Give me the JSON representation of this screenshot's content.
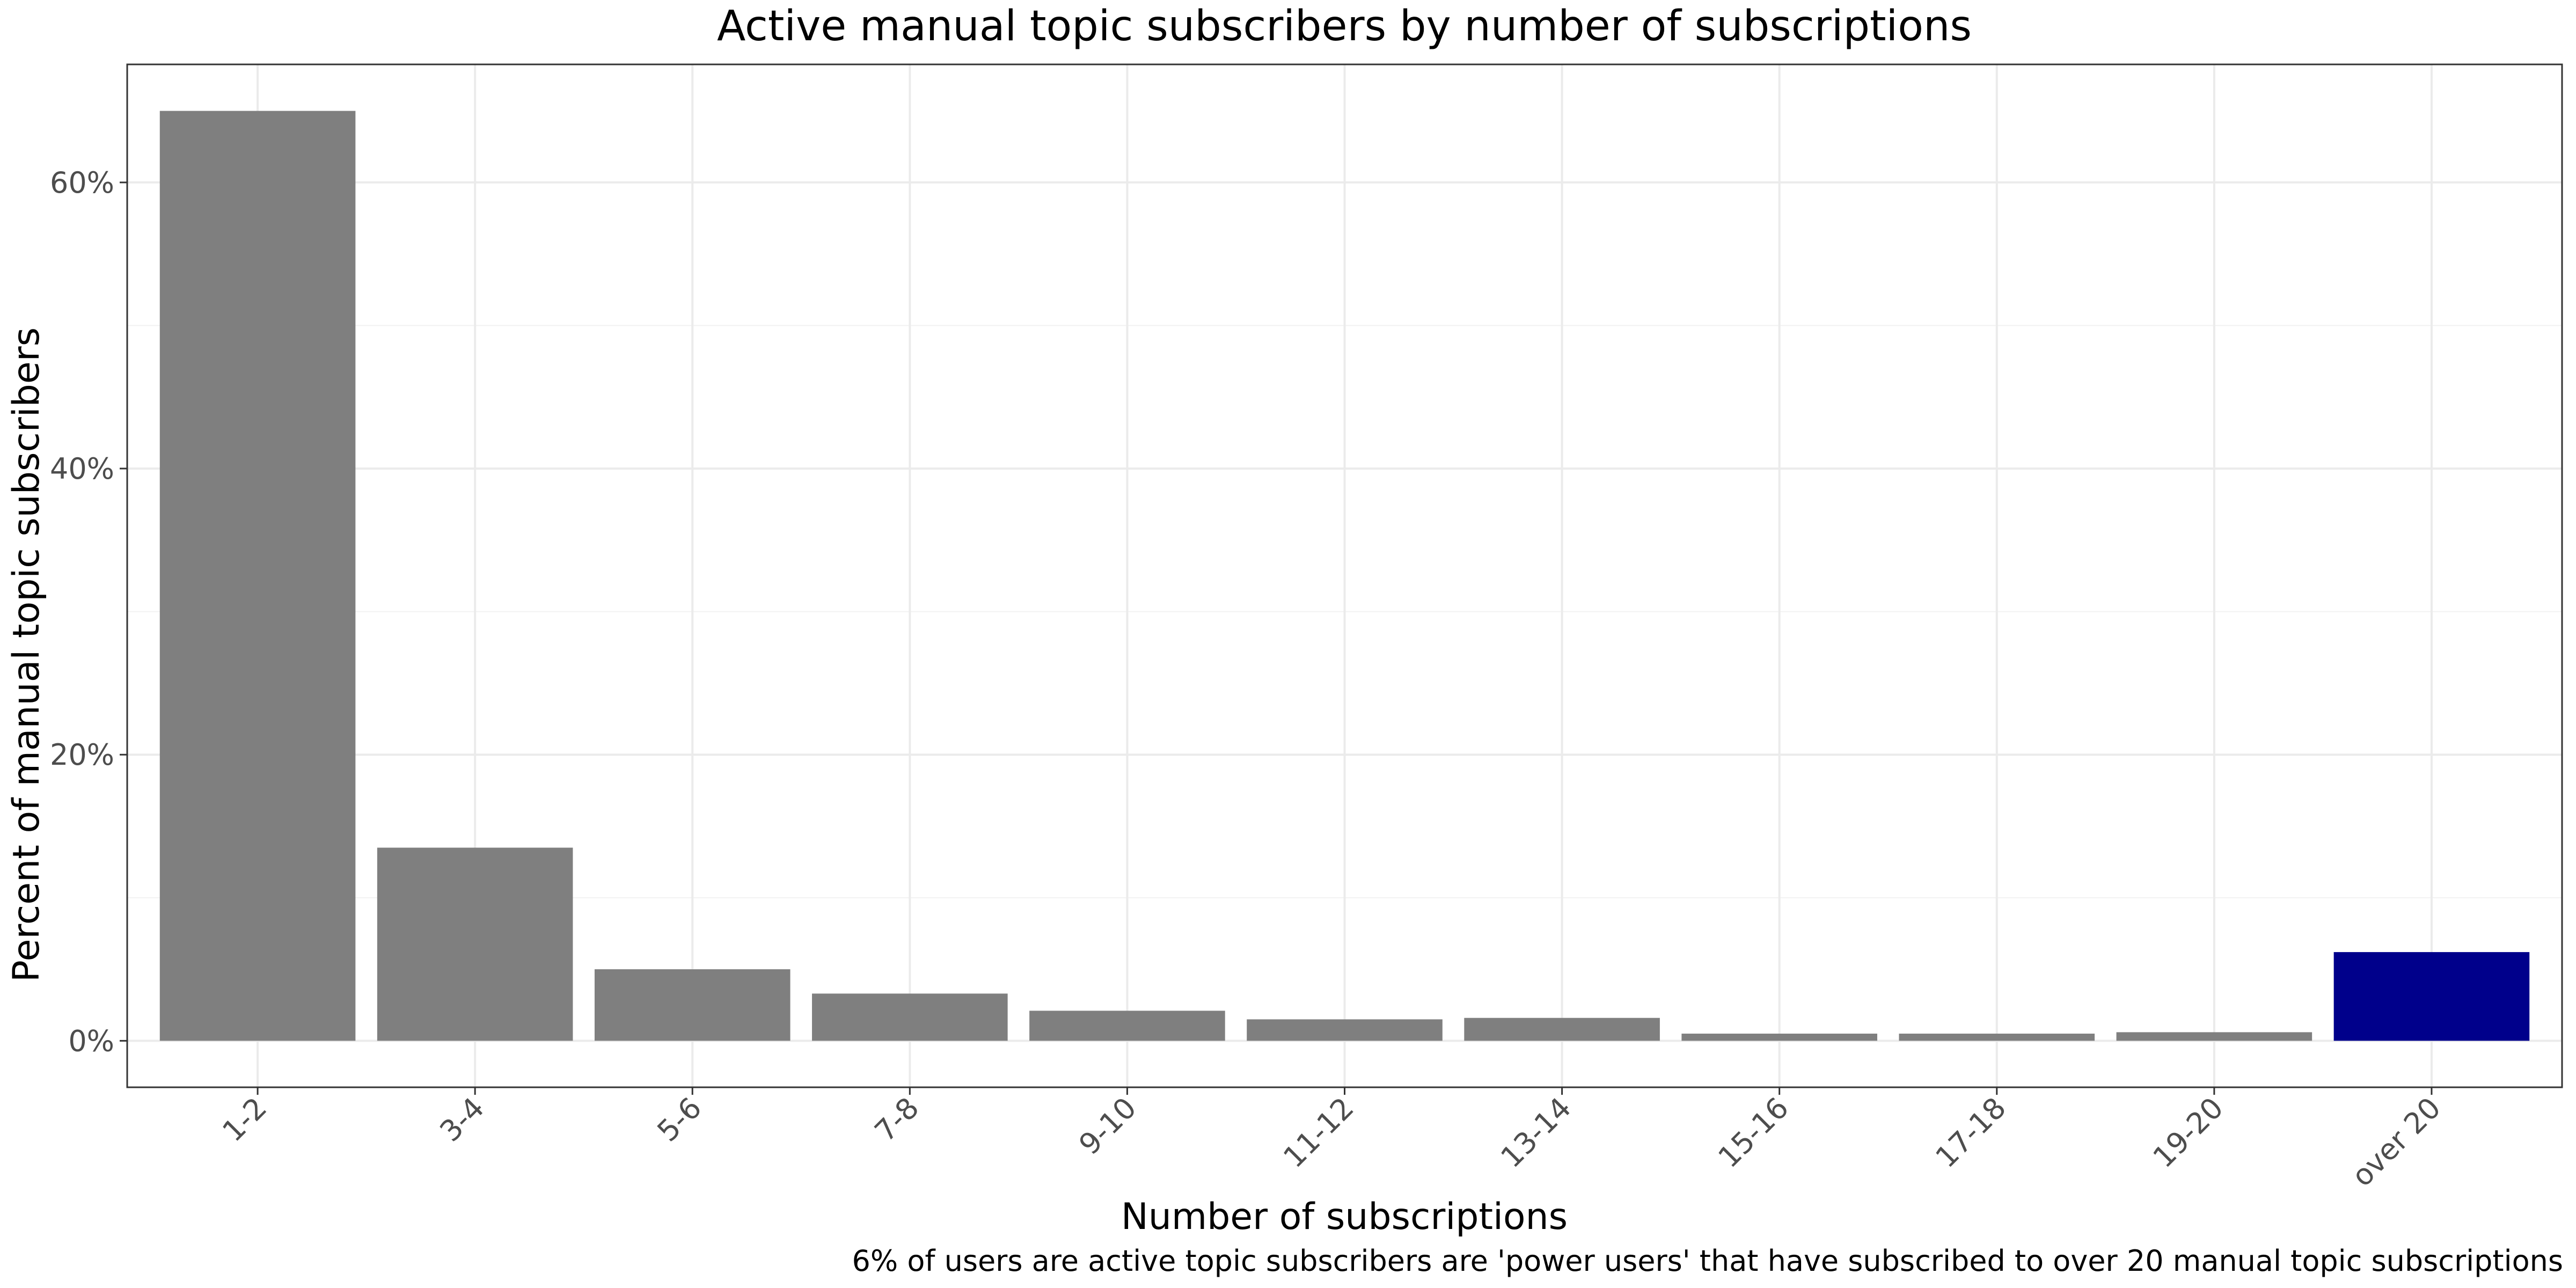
{
  "chart_data": {
    "type": "bar",
    "title": "Active manual topic subscribers by number of subscriptions",
    "xlabel": "Number of subscriptions",
    "ylabel": "Percent of manual topic subscribers",
    "caption": "6% of users are active topic subscribers are 'power users' that have subscribed to over 20 manual topic subscriptions",
    "categories": [
      "1-2",
      "3-4",
      "5-6",
      "7-8",
      "9-10",
      "11-12",
      "13-14",
      "15-16",
      "17-18",
      "19-20",
      "over 20"
    ],
    "values": [
      65.0,
      13.5,
      5.0,
      3.3,
      2.1,
      1.5,
      1.6,
      0.5,
      0.5,
      0.6,
      6.2
    ],
    "bar_colors": [
      "#7f7f7f",
      "#7f7f7f",
      "#7f7f7f",
      "#7f7f7f",
      "#7f7f7f",
      "#7f7f7f",
      "#7f7f7f",
      "#7f7f7f",
      "#7f7f7f",
      "#7f7f7f",
      "#00008b"
    ],
    "highlight_color": "#00008b",
    "default_color": "#7f7f7f",
    "yticks": [
      0,
      20,
      40,
      60
    ],
    "ytick_labels": [
      "0%",
      "20%",
      "40%",
      "60%"
    ],
    "ylim": [
      -3.25,
      68.25
    ],
    "grid": true,
    "legend": "none"
  }
}
